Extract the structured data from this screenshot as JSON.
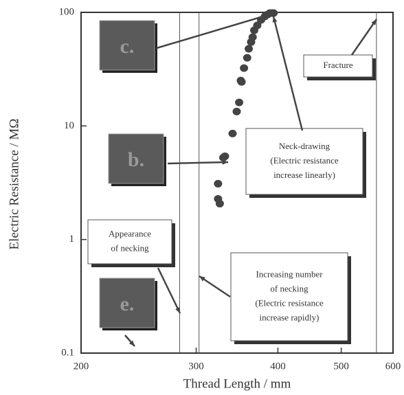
{
  "chart_data": {
    "type": "scatter",
    "x_label": "Thread Length  / mm",
    "y_label": "Electric Resistance / MΩ",
    "x": [
      326,
      324,
      324,
      330,
      332,
      341,
      346,
      349,
      352,
      351,
      355,
      359,
      361,
      364,
      366,
      368,
      372,
      377,
      382,
      386,
      389,
      392,
      394
    ],
    "y": [
      2.07,
      2.28,
      3.1,
      5.26,
      5.41,
      8.58,
      13.4,
      16.1,
      24.4,
      25.1,
      32.3,
      39.8,
      47.8,
      54.8,
      60.5,
      69.5,
      76.7,
      85.8,
      92,
      95.9,
      98.6,
      98.6,
      98.6
    ],
    "color": "#444444",
    "xlim": [
      200,
      600
    ],
    "ylim": [
      0.1,
      100
    ],
    "x_log": true,
    "y_log": true,
    "xticks": [
      200,
      300,
      400,
      500,
      600
    ],
    "yticks": [
      0.1,
      1,
      10,
      100
    ],
    "vlines": [
      283,
      303,
      566
    ],
    "photos": [
      "c.",
      "b.",
      "e."
    ],
    "annotations": {
      "fracture": [
        "Fracture"
      ],
      "neck_drawing": [
        "Neck-drawing",
        "(Electric resistance",
        "increase linearly)"
      ],
      "appearance": [
        "Appearance",
        "of necking"
      ],
      "increasing": [
        "Increasing number",
        "of necking",
        "(Electric resistance",
        "increase rapidly)"
      ]
    }
  }
}
